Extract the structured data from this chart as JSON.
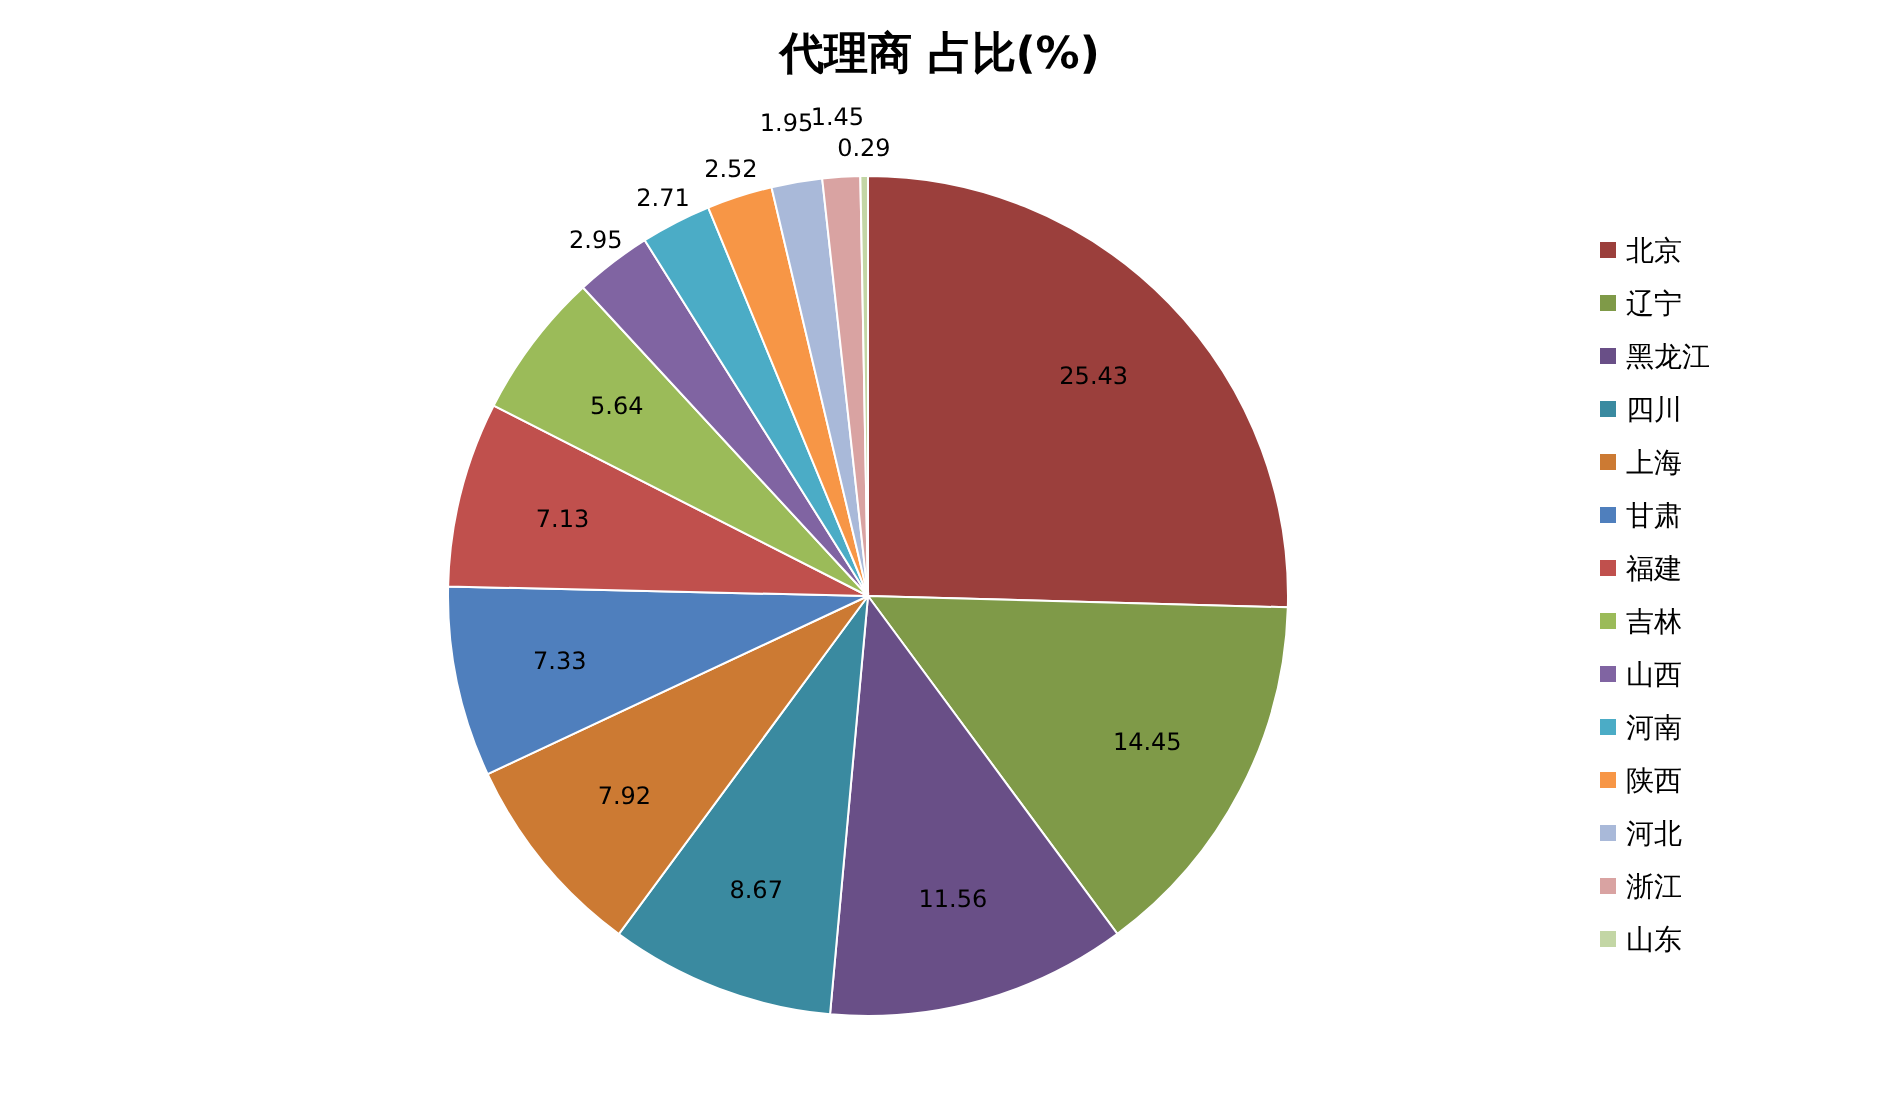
{
  "chart_data": {
    "type": "pie",
    "title": "代理商 占比(%)",
    "categories": [
      "北京",
      "辽宁",
      "黑龙江",
      "四川",
      "上海",
      "甘肃",
      "福建",
      "吉林",
      "山西",
      "河南",
      "陕西",
      "河北",
      "浙江",
      "山东"
    ],
    "values": [
      25.43,
      14.45,
      11.56,
      8.67,
      7.92,
      7.33,
      7.13,
      5.64,
      2.95,
      2.71,
      2.52,
      1.95,
      1.45,
      0.29
    ],
    "colors": [
      "#9b3f3c",
      "#7f9a48",
      "#694f87",
      "#3a8aa0",
      "#cc7a33",
      "#4f7fbd",
      "#c0504d",
      "#9bbb59",
      "#8064a2",
      "#4bacc6",
      "#f79646",
      "#a9b9d9",
      "#d9a3a2",
      "#c3d6a5"
    ],
    "data_labels": true,
    "legend": "right"
  }
}
